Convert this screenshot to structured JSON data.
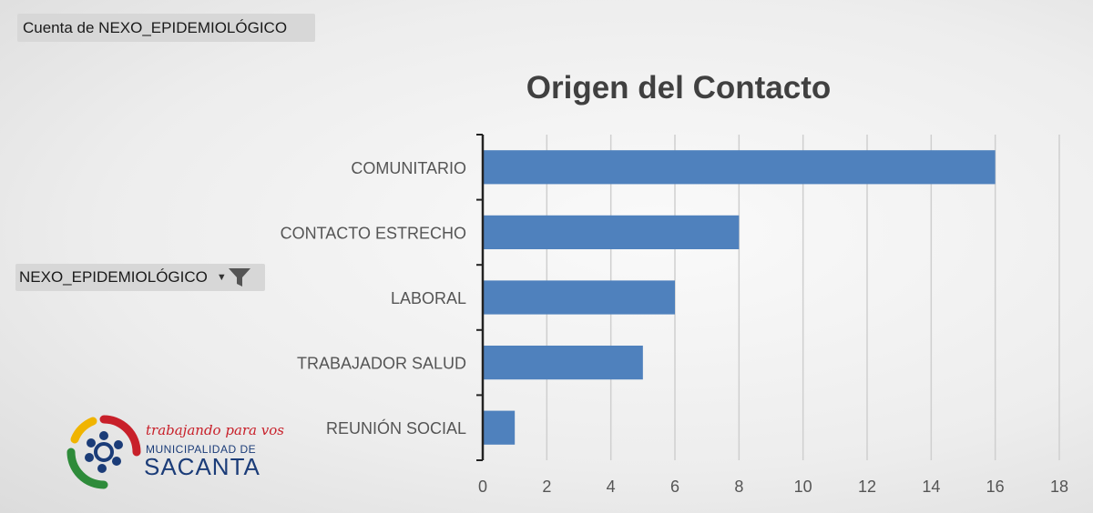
{
  "pivot": {
    "value_field": "Cuenta de NEXO_EPIDEMIOLÓGICO",
    "row_field": "NEXO_EPIDEMIOLÓGICO",
    "row_field_icons": [
      "dropdown-arrow-icon",
      "filter-icon"
    ]
  },
  "chart_data": {
    "type": "bar",
    "orientation": "horizontal",
    "title": "Origen del Contacto",
    "categories": [
      "COMUNITARIO",
      "CONTACTO ESTRECHO",
      "LABORAL",
      "TRABAJADOR SALUD",
      "REUNIÓN SOCIAL"
    ],
    "values": [
      16,
      8,
      6,
      5,
      1
    ],
    "xlim": [
      0,
      18
    ],
    "xticks": [
      "0",
      "2",
      "4",
      "6",
      "8",
      "10",
      "12",
      "14",
      "16",
      "18"
    ],
    "grid": "vertical",
    "legend": "none",
    "bar_color": "#4f81bd"
  },
  "logo": {
    "tagline": "trabajando para vos",
    "org_prefix": "MUNICIPALIDAD DE",
    "org_name": "SACANTA",
    "colors": {
      "red": "#c8202a",
      "green": "#2e8b3a",
      "yellow": "#f0b400",
      "blue": "#1b3c78"
    }
  }
}
